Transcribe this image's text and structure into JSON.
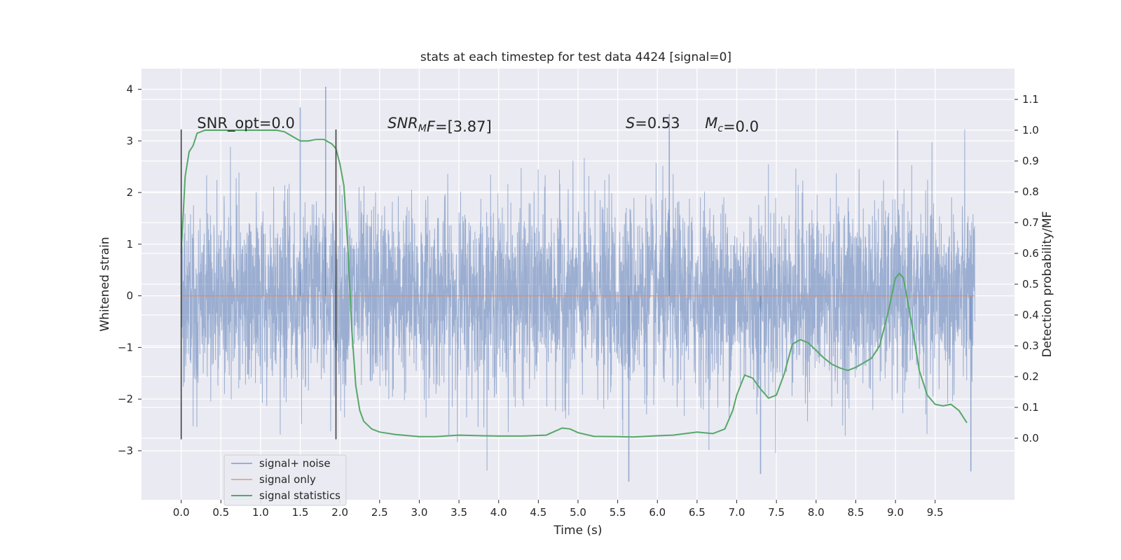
{
  "chart_data": {
    "type": "line",
    "title": "stats at each timestep for test data 4424 [signal=0]",
    "xlabel": "Time (s)",
    "ylabel": "Whitened strain",
    "ylabel_right": "Detection probability/MF",
    "xlim": [
      -0.5,
      10.5
    ],
    "ylim": [
      -3.95,
      4.4
    ],
    "ylim_right": [
      -0.2,
      1.2
    ],
    "x_ticks": [
      "0.0",
      "0.5",
      "1.0",
      "1.5",
      "2.0",
      "2.5",
      "3.0",
      "3.5",
      "4.0",
      "4.5",
      "5.0",
      "5.5",
      "6.0",
      "6.5",
      "7.0",
      "7.5",
      "8.0",
      "8.5",
      "9.0",
      "9.5"
    ],
    "y_ticks": [
      "4",
      "3",
      "2",
      "1",
      "0",
      "−1",
      "−2",
      "−3"
    ],
    "y_ticks_right": [
      "1.1",
      "1.0",
      "0.9",
      "0.8",
      "0.7",
      "0.6",
      "0.5",
      "0.4",
      "0.3",
      "0.2",
      "0.1",
      "0.0"
    ],
    "grid": true,
    "legend_position": "lower-left",
    "annotations": [
      {
        "text": "SNR_opt=0.0",
        "x": 0.2,
        "y": 3.25
      },
      {
        "text": "SNRMF=[3.87]",
        "x": 2.6,
        "y": 3.25
      },
      {
        "text": "S=0.53",
        "x": 5.6,
        "y": 3.25
      },
      {
        "text": "Mc=0.0",
        "x": 6.6,
        "y": 3.25
      }
    ],
    "vlines": [
      0.0,
      1.95
    ],
    "series": [
      {
        "name": "signal+ noise",
        "color": "#4c72b0",
        "axis": "left",
        "kind": "noise",
        "x_range": [
          0.0,
          10.0
        ],
        "amplitude_std": 0.9,
        "min": -3.6,
        "max": 4.05,
        "peaks": [
          {
            "x": 1.82,
            "y": 4.05
          },
          {
            "x": 1.5,
            "y": 3.65
          },
          {
            "x": 6.15,
            "y": 3.52
          },
          {
            "x": 5.64,
            "y": -3.6
          },
          {
            "x": 7.3,
            "y": -3.45
          },
          {
            "x": 9.95,
            "y": -3.4
          }
        ]
      },
      {
        "name": "signal only",
        "color": "#dd8452",
        "axis": "left",
        "x": [
          0.0,
          10.0
        ],
        "y": [
          0.0,
          0.0
        ]
      },
      {
        "name": "signal statistics",
        "color": "#55a868",
        "axis": "right",
        "x": [
          0.0,
          0.05,
          0.1,
          0.15,
          0.2,
          0.3,
          0.5,
          0.8,
          1.0,
          1.2,
          1.3,
          1.4,
          1.5,
          1.6,
          1.7,
          1.8,
          1.9,
          1.95,
          2.0,
          2.05,
          2.1,
          2.15,
          2.2,
          2.25,
          2.3,
          2.4,
          2.5,
          2.7,
          3.0,
          3.2,
          3.5,
          3.8,
          4.0,
          4.3,
          4.6,
          4.8,
          4.9,
          5.0,
          5.2,
          5.5,
          5.7,
          6.0,
          6.2,
          6.5,
          6.7,
          6.85,
          6.95,
          7.0,
          7.1,
          7.2,
          7.3,
          7.4,
          7.5,
          7.6,
          7.7,
          7.8,
          7.9,
          8.0,
          8.1,
          8.2,
          8.3,
          8.4,
          8.5,
          8.6,
          8.7,
          8.8,
          8.9,
          8.95,
          9.0,
          9.05,
          9.1,
          9.2,
          9.3,
          9.4,
          9.5,
          9.6,
          9.7,
          9.8,
          9.9
        ],
        "y": [
          0.6,
          0.85,
          0.93,
          0.95,
          0.99,
          1.0,
          1.0,
          1.0,
          1.0,
          1.0,
          0.995,
          0.98,
          0.965,
          0.965,
          0.97,
          0.97,
          0.955,
          0.94,
          0.89,
          0.82,
          0.62,
          0.35,
          0.17,
          0.09,
          0.055,
          0.03,
          0.02,
          0.012,
          0.005,
          0.005,
          0.01,
          0.008,
          0.007,
          0.007,
          0.01,
          0.033,
          0.03,
          0.018,
          0.006,
          0.005,
          0.004,
          0.008,
          0.01,
          0.02,
          0.015,
          0.03,
          0.09,
          0.14,
          0.205,
          0.195,
          0.16,
          0.13,
          0.14,
          0.21,
          0.305,
          0.32,
          0.31,
          0.285,
          0.26,
          0.24,
          0.228,
          0.22,
          0.23,
          0.245,
          0.26,
          0.3,
          0.4,
          0.46,
          0.52,
          0.535,
          0.52,
          0.38,
          0.22,
          0.14,
          0.11,
          0.105,
          0.11,
          0.09,
          0.05
        ]
      }
    ]
  }
}
